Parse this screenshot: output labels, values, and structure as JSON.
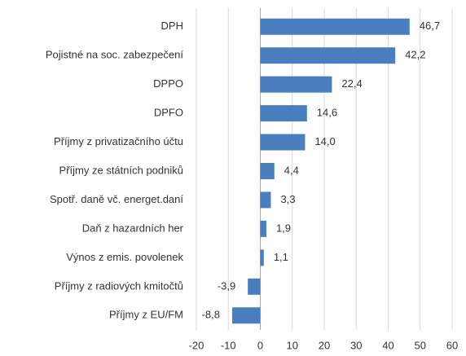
{
  "chart_data": {
    "type": "bar",
    "orientation": "horizontal",
    "categories": [
      "DPH",
      "Pojistné na soc. zabezpečení",
      "DPPO",
      "DPFO",
      "Příjmy z privatizačního účtu",
      "Příjmy ze státních podniků",
      "Spotř. daně vč. energet.daní",
      "Daň z hazardních her",
      "Výnos z emis. povolenek",
      "Příjmy z radiových kmitočtů",
      "Příjmy z EU/FM"
    ],
    "values": [
      46.7,
      42.2,
      22.4,
      14.6,
      14.0,
      4.4,
      3.3,
      1.9,
      1.1,
      -3.9,
      -8.8
    ],
    "value_labels": [
      "46,7",
      "42,2",
      "22,4",
      "14,6",
      "14,0",
      "4,4",
      "3,3",
      "1,9",
      "1,1",
      "-3,9",
      "-8,8"
    ],
    "color": "#4a7ebf",
    "xlim": [
      -20,
      60
    ],
    "xticks": [
      -20,
      -10,
      0,
      10,
      20,
      30,
      40,
      50,
      60
    ],
    "grid": true
  }
}
